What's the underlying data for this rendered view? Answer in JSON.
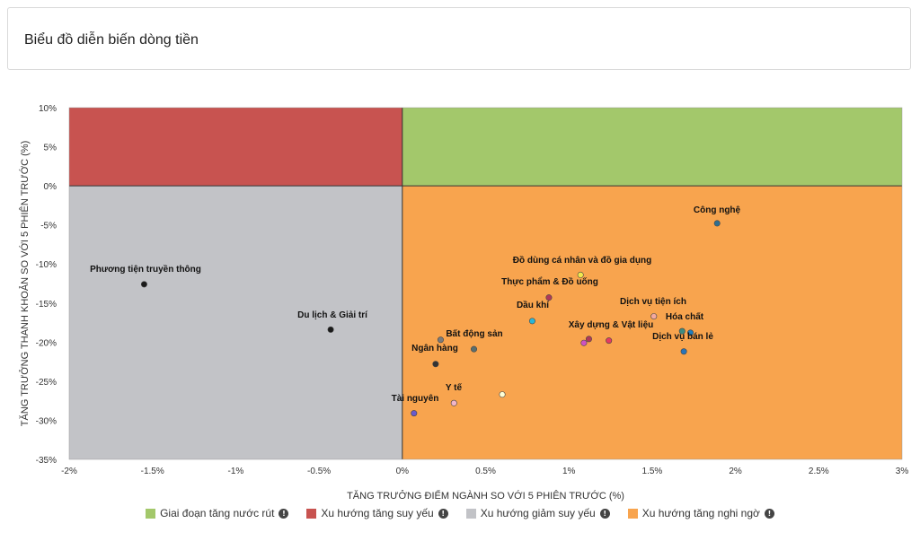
{
  "header": {
    "title": "Biểu đồ diễn biến dòng tiền"
  },
  "colors": {
    "green": "#a3c86b",
    "red": "#c85350",
    "grey": "#c2c3c7",
    "orange": "#f8a44e"
  },
  "legend": [
    {
      "label": "Giai đoạn tăng nước rút",
      "color": "#a3c86b",
      "icon": "info-icon"
    },
    {
      "label": "Xu hướng tăng suy yếu",
      "color": "#c85350",
      "icon": "info-icon"
    },
    {
      "label": "Xu hướng giảm suy yếu",
      "color": "#c2c3c7",
      "icon": "info-icon"
    },
    {
      "label": "Xu hướng tăng nghi ngờ",
      "color": "#f8a44e",
      "icon": "info-icon"
    }
  ],
  "chart_data": {
    "type": "scatter",
    "title": "",
    "xlabel": "TĂNG TRƯỞNG ĐIỂM NGÀNH SO VỚI 5 PHIÊN TRƯỚC (%)",
    "ylabel": "TĂNG TRƯỞNG THANH KHOẢN SO VỚI 5 PHIÊN TRƯỚC (%)",
    "xlim": [
      -2,
      3
    ],
    "ylim": [
      -35,
      10
    ],
    "xticks": [
      -2,
      -1.5,
      -1,
      -0.5,
      0,
      0.5,
      1,
      1.5,
      2,
      2.5,
      3
    ],
    "xtick_labels": [
      "-2%",
      "-1.5%",
      "-1%",
      "-0.5%",
      "0%",
      "0.5%",
      "1%",
      "1.5%",
      "2%",
      "2.5%",
      "3%"
    ],
    "yticks": [
      10,
      5,
      0,
      -5,
      -10,
      -15,
      -20,
      -25,
      -30,
      -35
    ],
    "ytick_labels": [
      "10%",
      "5%",
      "0%",
      "-5%",
      "-10%",
      "-15%",
      "-20%",
      "-25%",
      "-30%",
      "-35%"
    ],
    "grid": false,
    "legend_position": "bottom",
    "points": [
      {
        "label": "Công nghệ",
        "x": 1.89,
        "y": -4.8,
        "color": "#2f6e8f"
      },
      {
        "label": "Phương tiện truyền thông",
        "x": -1.55,
        "y": -12.6,
        "color": "#1a1a1a"
      },
      {
        "label": "Đồ dùng cá nhân và đồ gia dụng",
        "x": 1.07,
        "y": -11.4,
        "color": "#f2e94e"
      },
      {
        "label": "Thực phẩm & Đồ uống",
        "x": 0.88,
        "y": -14.3,
        "color": "#b0395a"
      },
      {
        "label": "Dầu khí",
        "x": 0.78,
        "y": -17.3,
        "color": "#2ab6d6"
      },
      {
        "label": "Dịch vụ tiện ích",
        "x": 1.51,
        "y": -16.7,
        "color": "#f3a9a0"
      },
      {
        "label": "Du lịch & Giải trí",
        "x": -0.43,
        "y": -18.4,
        "color": "#1a1a1a"
      },
      {
        "label": "Hóa chất",
        "x": 1.68,
        "y": -18.6,
        "color": "#3e8c80"
      },
      {
        "label": "Xây dựng & Vật liệu",
        "x": 1.12,
        "y": -19.6,
        "color": "#b0395a"
      },
      {
        "label": "Xây dựng & Vật liệu",
        "x": 1.09,
        "y": -20.1,
        "color": "#cf52c1"
      },
      {
        "label": "Xây dựng & Vật liệu",
        "x": 1.24,
        "y": -19.8,
        "color": "#e63a63"
      },
      {
        "label": "Bất động sản",
        "x": 0.23,
        "y": -19.7,
        "color": "#7b7b7b"
      },
      {
        "label": "Bất động sản",
        "x": 0.43,
        "y": -20.9,
        "color": "#5a6e6e"
      },
      {
        "label": "Dịch vụ bán lẻ",
        "x": 1.69,
        "y": -21.2,
        "color": "#2a74b8"
      },
      {
        "label": "Ngân hàng",
        "x": 0.2,
        "y": -22.8,
        "color": "#333333"
      },
      {
        "label": "Y tế",
        "x": 0.6,
        "y": -26.7,
        "color": "#ffffd6"
      },
      {
        "label": "Y tế",
        "x": 0.31,
        "y": -27.8,
        "color": "#f2b5c9"
      },
      {
        "label": "Tài nguyên",
        "x": 0.07,
        "y": -29.1,
        "color": "#6a5acd"
      },
      {
        "label": "Dịch vụ bán lẻ",
        "x": 1.73,
        "y": -18.8,
        "color": "#1f7fbf"
      }
    ],
    "labels": [
      {
        "text": "Công nghệ"
      },
      {
        "text": "Phương tiện truyền thông"
      },
      {
        "text": "Đồ dùng cá nhân và đồ gia dụng"
      },
      {
        "text": "Thực phẩm & Đồ uống"
      },
      {
        "text": "Dầu khí"
      },
      {
        "text": "Dịch vụ tiện ích"
      },
      {
        "text": "Du lịch & Giải trí"
      },
      {
        "text": "Hóa chất"
      },
      {
        "text": "Xây dựng & Vật liệu"
      },
      {
        "text": "Bất động sản"
      },
      {
        "text": "Dịch vụ bán lẻ"
      },
      {
        "text": "Ngân hàng"
      },
      {
        "text": "Y tế"
      },
      {
        "text": "Tài nguyên"
      }
    ]
  }
}
